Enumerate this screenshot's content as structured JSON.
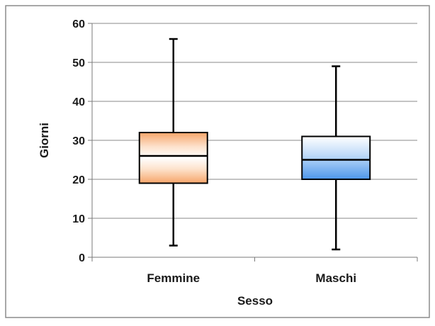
{
  "chart_data": {
    "type": "box",
    "title": "",
    "xlabel": "Sesso",
    "ylabel": "Giorni",
    "ylim": [
      0,
      60
    ],
    "yticks": [
      0,
      10,
      20,
      30,
      40,
      50,
      60
    ],
    "grid": true,
    "legend": "none",
    "categories": [
      "Femmine",
      "Maschi"
    ],
    "boxes": [
      {
        "category": "Femmine",
        "min": 3,
        "q1": 19,
        "median": 26,
        "q3": 32,
        "max": 56,
        "color": "#f4a46a"
      },
      {
        "category": "Maschi",
        "min": 2,
        "q1": 20,
        "median": 25,
        "q3": 31,
        "max": 49,
        "color": "#5aa0ec"
      }
    ]
  }
}
